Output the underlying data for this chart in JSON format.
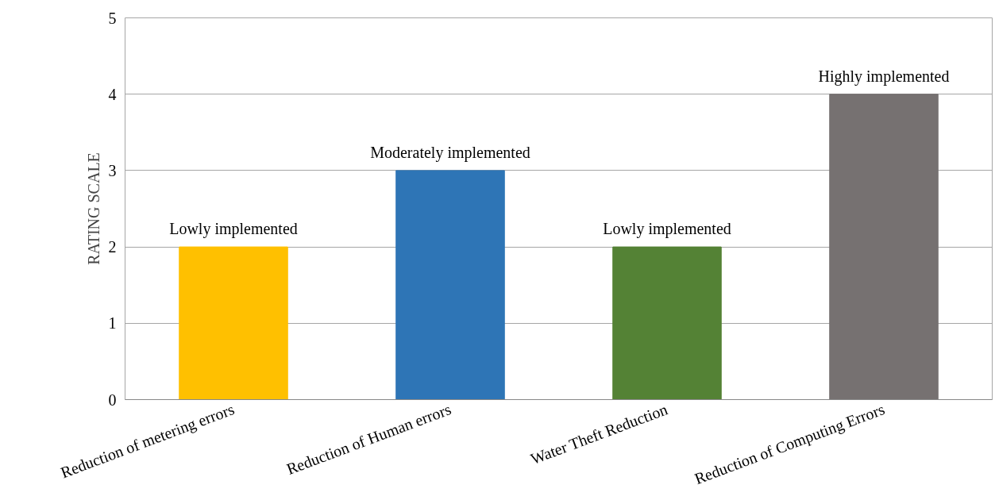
{
  "chart_data": {
    "type": "bar",
    "ylabel": "RATING SCALE",
    "categories": [
      "Reduction of metering errors",
      "Reduction of Human errors",
      "Water Theft Reduction",
      "Reduction of Computing Errors"
    ],
    "values": [
      2,
      3,
      2,
      4
    ],
    "colors": [
      "#ffc000",
      "#2e75b6",
      "#548235",
      "#767171"
    ],
    "value_labels": [
      "Lowly implemented",
      "Moderately implemented",
      "Lowly implemented",
      "Highly implemented"
    ],
    "ylim": [
      0,
      5
    ],
    "yticks": [
      0,
      1,
      2,
      3,
      4,
      5
    ],
    "grid": "y"
  }
}
